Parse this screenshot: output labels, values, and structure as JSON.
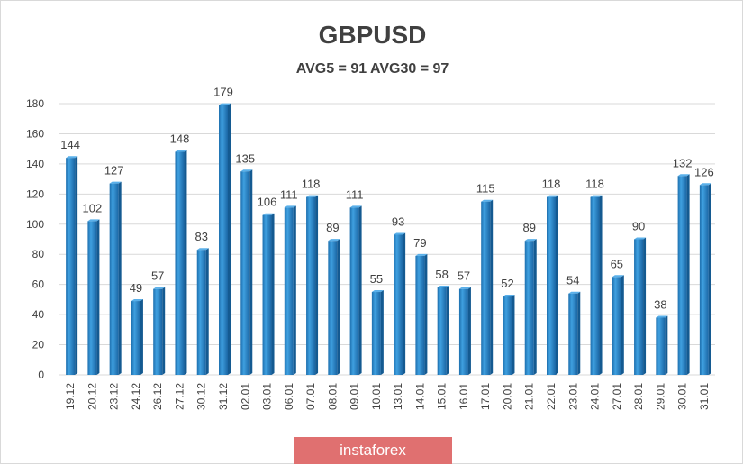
{
  "chart_data": {
    "type": "bar",
    "title": "GBPUSD",
    "subtitle": "AVG5 = 91 AVG30 = 97",
    "categories": [
      "19.12",
      "20.12",
      "23.12",
      "24.12",
      "26.12",
      "27.12",
      "30.12",
      "31.12",
      "02.01",
      "03.01",
      "06.01",
      "07.01",
      "08.01",
      "09.01",
      "10.01",
      "13.01",
      "14.01",
      "15.01",
      "16.01",
      "17.01",
      "20.01",
      "21.01",
      "22.01",
      "23.01",
      "24.01",
      "27.01",
      "28.01",
      "29.01",
      "30.01",
      "31.01"
    ],
    "values": [
      144,
      102,
      127,
      49,
      57,
      148,
      83,
      179,
      135,
      106,
      111,
      118,
      89,
      111,
      55,
      93,
      79,
      58,
      57,
      115,
      52,
      89,
      118,
      54,
      118,
      65,
      90,
      38,
      132,
      126
    ],
    "ylim": [
      0,
      180
    ],
    "yticks": [
      0,
      20,
      40,
      60,
      80,
      100,
      120,
      140,
      160,
      180
    ],
    "grid": true,
    "bar_color": "#2e86c8",
    "xlabel": "",
    "ylabel": ""
  },
  "watermark": "instaforex"
}
